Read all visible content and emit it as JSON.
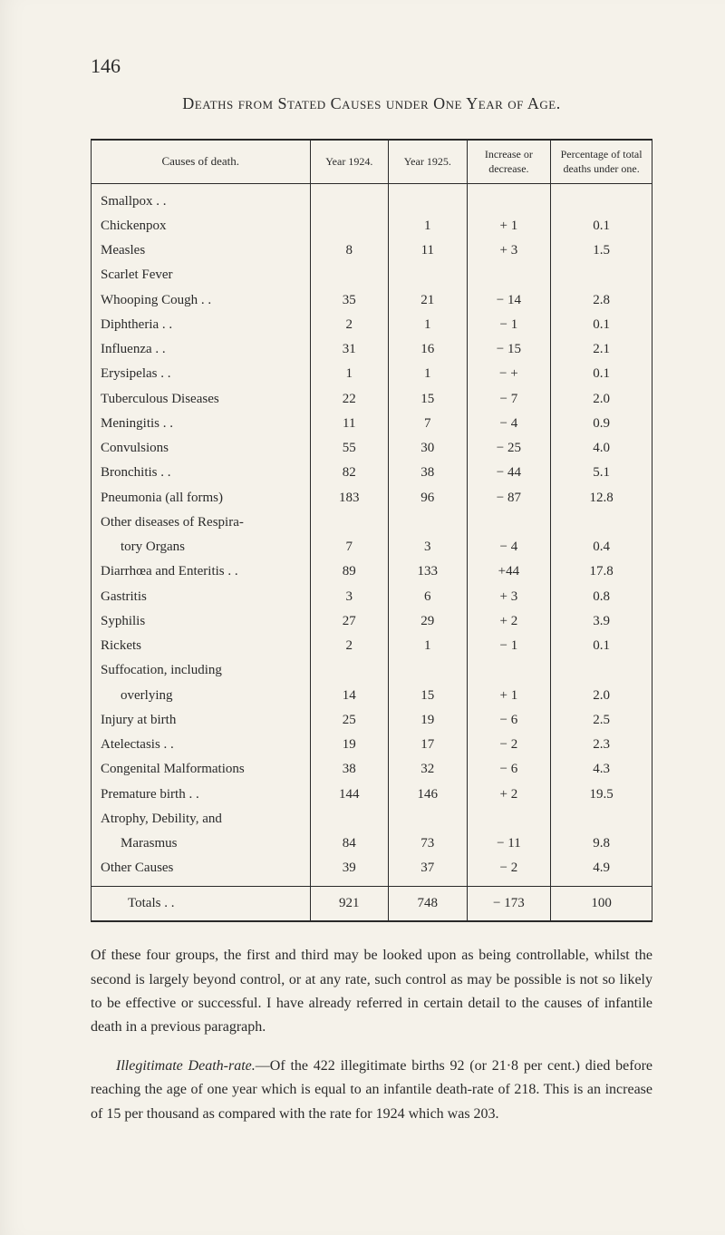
{
  "page_number": "146",
  "title": "Deaths from Stated Causes under One Year of Age.",
  "table": {
    "headers": {
      "cause": "Causes of death.",
      "year_1924": "Year 1924.",
      "year_1925": "Year 1925.",
      "increase": "Increase or decrease.",
      "percentage": "Percentage of total deaths under one."
    },
    "rows": [
      {
        "cause": "Smallpox  . .",
        "y1924": "",
        "y1925": "",
        "inc": "",
        "pct": ""
      },
      {
        "cause": "Chickenpox",
        "y1924": "",
        "y1925": "1",
        "inc": "+ 1",
        "pct": "0.1"
      },
      {
        "cause": "Measles",
        "y1924": "8",
        "y1925": "11",
        "inc": "+ 3",
        "pct": "1.5"
      },
      {
        "cause": "Scarlet Fever",
        "y1924": "",
        "y1925": "",
        "inc": "",
        "pct": ""
      },
      {
        "cause": "Whooping Cough . .",
        "y1924": "35",
        "y1925": "21",
        "inc": "− 14",
        "pct": "2.8"
      },
      {
        "cause": "Diphtheria . .",
        "y1924": "2",
        "y1925": "1",
        "inc": "− 1",
        "pct": "0.1"
      },
      {
        "cause": "Influenza  . .",
        "y1924": "31",
        "y1925": "16",
        "inc": "− 15",
        "pct": "2.1"
      },
      {
        "cause": "Erysipelas . .",
        "y1924": "1",
        "y1925": "1",
        "inc": "− +",
        "pct": "0.1"
      },
      {
        "cause": "Tuberculous Diseases",
        "y1924": "22",
        "y1925": "15",
        "inc": "− 7",
        "pct": "2.0"
      },
      {
        "cause": "Meningitis . .",
        "y1924": "11",
        "y1925": "7",
        "inc": "− 4",
        "pct": "0.9"
      },
      {
        "cause": "Convulsions",
        "y1924": "55",
        "y1925": "30",
        "inc": "− 25",
        "pct": "4.0"
      },
      {
        "cause": "Bronchitis . .",
        "y1924": "82",
        "y1925": "38",
        "inc": "− 44",
        "pct": "5.1"
      },
      {
        "cause": "Pneumonia (all forms)",
        "y1924": "183",
        "y1925": "96",
        "inc": "− 87",
        "pct": "12.8"
      },
      {
        "cause": "Other diseases of Respira-",
        "y1924": "",
        "y1925": "",
        "inc": "",
        "pct": "",
        "continuation": true
      },
      {
        "cause": "tory Organs",
        "y1924": "7",
        "y1925": "3",
        "inc": "− 4",
        "pct": "0.4",
        "indent": true
      },
      {
        "cause": "Diarrhœa and Enteritis . .",
        "y1924": "89",
        "y1925": "133",
        "inc": "+44",
        "pct": "17.8"
      },
      {
        "cause": "Gastritis",
        "y1924": "3",
        "y1925": "6",
        "inc": "+ 3",
        "pct": "0.8"
      },
      {
        "cause": "Syphilis",
        "y1924": "27",
        "y1925": "29",
        "inc": "+ 2",
        "pct": "3.9"
      },
      {
        "cause": "Rickets",
        "y1924": "2",
        "y1925": "1",
        "inc": "− 1",
        "pct": "0.1"
      },
      {
        "cause": "Suffocation, including",
        "y1924": "",
        "y1925": "",
        "inc": "",
        "pct": "",
        "continuation": true
      },
      {
        "cause": "overlying",
        "y1924": "14",
        "y1925": "15",
        "inc": "+ 1",
        "pct": "2.0",
        "indent": true
      },
      {
        "cause": "Injury at birth",
        "y1924": "25",
        "y1925": "19",
        "inc": "− 6",
        "pct": "2.5"
      },
      {
        "cause": "Atelectasis . .",
        "y1924": "19",
        "y1925": "17",
        "inc": "− 2",
        "pct": "2.3"
      },
      {
        "cause": "Congenital Malformations",
        "y1924": "38",
        "y1925": "32",
        "inc": "− 6",
        "pct": "4.3"
      },
      {
        "cause": "Premature birth . .",
        "y1924": "144",
        "y1925": "146",
        "inc": "+ 2",
        "pct": "19.5"
      },
      {
        "cause": "Atrophy, Debility, and",
        "y1924": "",
        "y1925": "",
        "inc": "",
        "pct": "",
        "continuation": true
      },
      {
        "cause": "Marasmus",
        "y1924": "84",
        "y1925": "73",
        "inc": "− 11",
        "pct": "9.8",
        "indent": true
      },
      {
        "cause": "Other Causes",
        "y1924": "39",
        "y1925": "37",
        "inc": "− 2",
        "pct": "4.9"
      }
    ],
    "totals": {
      "label": "Totals . .",
      "y1924": "921",
      "y1925": "748",
      "inc": "− 173",
      "pct": "100"
    }
  },
  "paragraphs": {
    "p1": "Of these four groups, the first and third may be looked upon as being controllable, whilst the second is largely beyond control, or at any rate, such control as may be possible is not so likely to be effective or successful. I have already referred in certain detail to the causes of infantile death in a previous paragraph.",
    "p2_lead": "Illegitimate Death-rate.",
    "p2_rest": "—Of the 422 illegitimate births 92 (or 21·8 per cent.) died before reaching the age of one year which is equal to an infantile death-rate of 218. This is an increase of 15 per thousand as compared with the rate for 1924 which was 203."
  }
}
